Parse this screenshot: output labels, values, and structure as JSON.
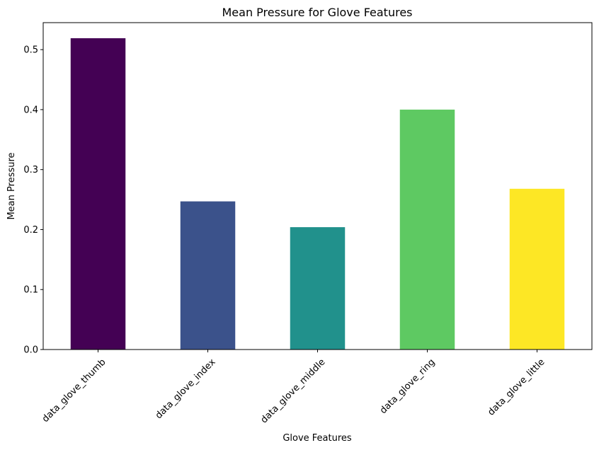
{
  "chart_data": {
    "type": "bar",
    "title": "Mean Pressure for Glove Features",
    "xlabel": "Glove Features",
    "ylabel": "Mean Pressure",
    "categories": [
      "data_glove_thumb",
      "data_glove_index",
      "data_glove_middle",
      "data_glove_ring",
      "data_glove_little"
    ],
    "values": [
      0.519,
      0.247,
      0.204,
      0.4,
      0.268
    ],
    "colors": [
      "#440154",
      "#3b528b",
      "#21918c",
      "#5ec962",
      "#fde725"
    ],
    "ylim": [
      0,
      0.545
    ],
    "yticks": [
      0.0,
      0.1,
      0.2,
      0.3,
      0.4,
      0.5
    ],
    "ytick_labels": [
      "0.0",
      "0.1",
      "0.2",
      "0.3",
      "0.4",
      "0.5"
    ],
    "grid": false,
    "legend": false
  }
}
